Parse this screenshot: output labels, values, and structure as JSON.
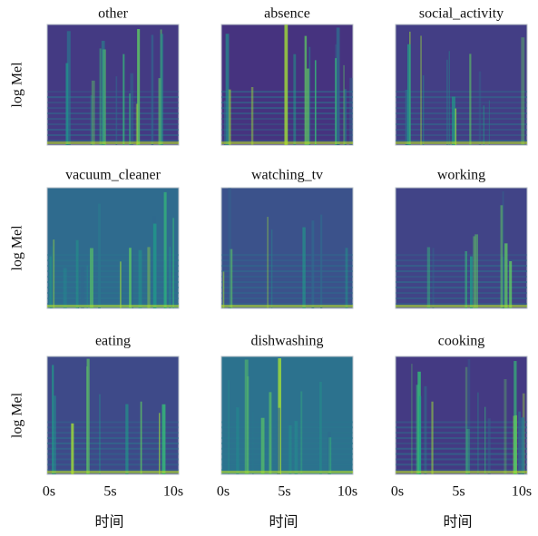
{
  "panels": [
    {
      "title": "other"
    },
    {
      "title": "absence"
    },
    {
      "title": "social_activity"
    },
    {
      "title": "vacuum_cleaner"
    },
    {
      "title": "watching_tv"
    },
    {
      "title": "working"
    },
    {
      "title": "eating"
    },
    {
      "title": "dishwashing"
    },
    {
      "title": "cooking"
    }
  ],
  "y_label": "log Mel",
  "x_ticks": [
    "0s",
    "5s",
    "10s"
  ],
  "x_label": "时间"
}
